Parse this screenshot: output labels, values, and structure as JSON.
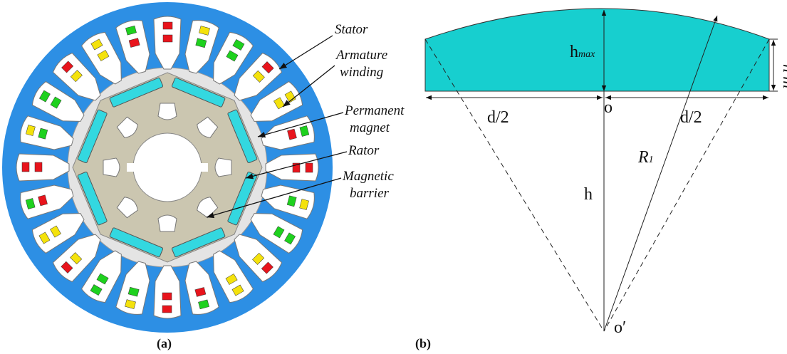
{
  "labels": {
    "stator": "Stator",
    "armature_winding": [
      "Armature",
      "winding"
    ],
    "permanent_magnet": [
      "Permanent",
      "magnet"
    ],
    "rator": "Rator",
    "magnetic_barrier": [
      "Magnetic",
      "barrier"
    ]
  },
  "captions": {
    "a": "(a)",
    "b": "(b)"
  },
  "geometry": {
    "h_max": {
      "base": "h",
      "sub": "max"
    },
    "d_half_left": "d/2",
    "d_half_right": "d/2",
    "center_o": "o",
    "radius": {
      "base": "R",
      "sub": "1"
    },
    "height": "h",
    "apex": "o′",
    "h_prime": "h′m"
  }
}
